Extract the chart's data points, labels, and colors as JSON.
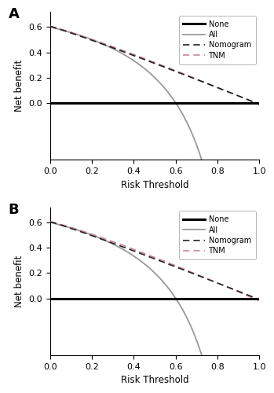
{
  "panel_A": {
    "label": "A",
    "xlabel": "Risk Threshold",
    "ylabel": "Net benefit",
    "ylim": [
      -0.45,
      0.72
    ],
    "xlim": [
      0.0,
      1.0
    ],
    "yticks": [
      0.0,
      0.2,
      0.4,
      0.6
    ],
    "xticks": [
      0.0,
      0.2,
      0.4,
      0.6,
      0.8,
      1.0
    ],
    "prevalence": 0.6,
    "nom_a": 0.605,
    "nom_b": 1.07,
    "nom_c": 0.01,
    "tnm_a": 0.605,
    "tnm_b": 1.12,
    "tnm_c": 0.015
  },
  "panel_B": {
    "label": "B",
    "xlabel": "Risk Threshold",
    "ylabel": "Net benefit",
    "ylim": [
      -0.45,
      0.72
    ],
    "xlim": [
      0.0,
      1.0
    ],
    "yticks": [
      0.0,
      0.2,
      0.4,
      0.6
    ],
    "xticks": [
      0.0,
      0.2,
      0.4,
      0.6,
      0.8,
      1.0
    ],
    "prevalence": 0.6,
    "nom_a": 0.605,
    "nom_b": 1.07,
    "nom_c": 0.01,
    "tnm_a": 0.605,
    "tnm_b": 1.15,
    "tnm_c": 0.02
  },
  "colors": {
    "none": "#000000",
    "all": "#999999",
    "nomogram": "#222222",
    "tnm": "#cc8899"
  },
  "none_lw": 2.2,
  "all_lw": 1.3,
  "nom_lw": 1.2,
  "tnm_lw": 1.2
}
